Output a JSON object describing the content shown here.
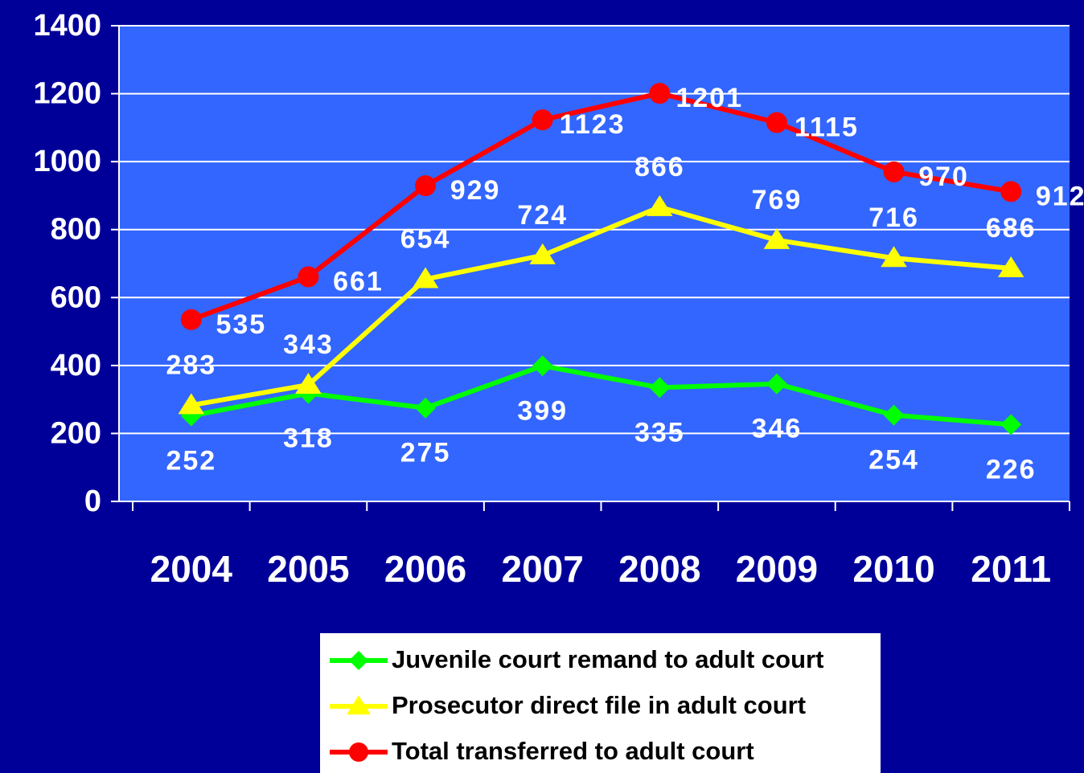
{
  "chart_data": {
    "type": "line",
    "categories": [
      "2004",
      "2005",
      "2006",
      "2007",
      "2008",
      "2009",
      "2010",
      "2011"
    ],
    "series": [
      {
        "name": "Juvenile court remand to adult court",
        "color": "#00ff00",
        "marker": "diamond",
        "values": [
          252,
          318,
          275,
          399,
          335,
          346,
          254,
          226
        ]
      },
      {
        "name": "Prosecutor direct file in adult court",
        "color": "#ffff00",
        "marker": "triangle",
        "values": [
          283,
          343,
          654,
          724,
          866,
          769,
          716,
          686
        ]
      },
      {
        "name": "Total transferred to adult court",
        "color": "#ff0000",
        "marker": "circle",
        "values": [
          535,
          661,
          929,
          1123,
          1201,
          1115,
          970,
          912
        ]
      }
    ],
    "ylim": [
      0,
      1400
    ],
    "yticks": [
      0,
      200,
      400,
      600,
      800,
      1000,
      1200,
      1400
    ],
    "grid": true,
    "legend": "bottom"
  }
}
